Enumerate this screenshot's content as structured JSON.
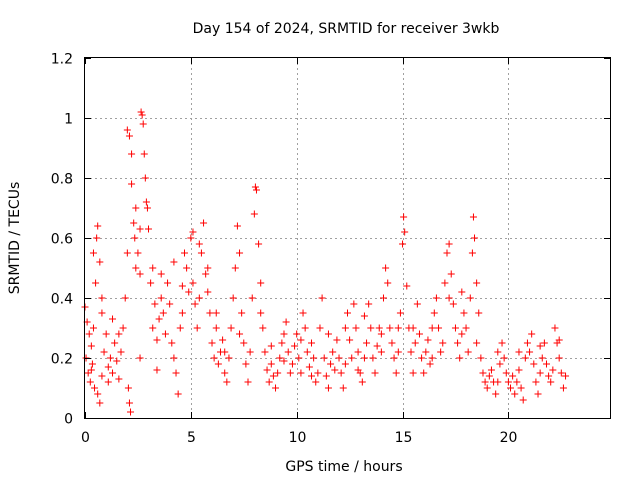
{
  "chart_data": {
    "type": "scatter",
    "title": "Day 154 of 2024, SRMTID for receiver 3wkb",
    "xlabel": "GPS time / hours",
    "ylabel": "SRMTID / TECUs",
    "xlim": [
      0,
      24.8
    ],
    "ylim": [
      0,
      1.2
    ],
    "xticks": [
      0,
      5,
      10,
      15,
      20
    ],
    "xtick_labels": [
      "0",
      "5",
      "10",
      "15",
      "20"
    ],
    "yticks": [
      0,
      0.2,
      0.4,
      0.6,
      0.8,
      1.0,
      1.2
    ],
    "ytick_labels": [
      "0",
      "0.2",
      "0.4",
      "0.6",
      "0.8",
      "1",
      "1.2"
    ],
    "grid": true,
    "marker": "plus",
    "color": "#ff0000",
    "series": [
      {
        "name": "SRMTID",
        "points": [
          [
            0.0,
            0.37
          ],
          [
            0.1,
            0.32
          ],
          [
            0.2,
            0.28
          ],
          [
            0.3,
            0.24
          ],
          [
            0.4,
            0.3
          ],
          [
            0.5,
            0.45
          ],
          [
            0.55,
            0.6
          ],
          [
            0.6,
            0.64
          ],
          [
            0.7,
            0.52
          ],
          [
            0.8,
            0.35
          ],
          [
            0.05,
            0.2
          ],
          [
            0.15,
            0.15
          ],
          [
            0.25,
            0.12
          ],
          [
            0.35,
            0.18
          ],
          [
            0.45,
            0.1
          ],
          [
            0.6,
            0.08
          ],
          [
            0.7,
            0.05
          ],
          [
            0.8,
            0.14
          ],
          [
            0.9,
            0.22
          ],
          [
            1.0,
            0.28
          ],
          [
            1.1,
            0.17
          ],
          [
            1.2,
            0.2
          ],
          [
            1.3,
            0.15
          ],
          [
            1.4,
            0.25
          ],
          [
            1.5,
            0.19
          ],
          [
            1.6,
            0.13
          ],
          [
            1.7,
            0.22
          ],
          [
            1.8,
            0.3
          ],
          [
            1.9,
            0.4
          ],
          [
            2.0,
            0.55
          ],
          [
            2.05,
            0.1
          ],
          [
            2.1,
            0.05
          ],
          [
            2.15,
            0.02
          ],
          [
            2.0,
            0.96
          ],
          [
            2.1,
            0.94
          ],
          [
            2.2,
            0.88
          ],
          [
            2.2,
            0.78
          ],
          [
            2.3,
            0.65
          ],
          [
            2.35,
            0.6
          ],
          [
            2.4,
            0.5
          ],
          [
            2.5,
            0.55
          ],
          [
            2.6,
            0.48
          ],
          [
            2.65,
            1.02
          ],
          [
            2.7,
            1.01
          ],
          [
            2.75,
            0.98
          ],
          [
            2.8,
            0.88
          ],
          [
            2.85,
            0.8
          ],
          [
            2.9,
            0.72
          ],
          [
            2.95,
            0.7
          ],
          [
            3.0,
            0.63
          ],
          [
            3.1,
            0.45
          ],
          [
            3.2,
            0.3
          ],
          [
            3.3,
            0.38
          ],
          [
            3.4,
            0.26
          ],
          [
            3.5,
            0.33
          ],
          [
            3.6,
            0.4
          ],
          [
            3.7,
            0.35
          ],
          [
            3.8,
            0.28
          ],
          [
            3.9,
            0.45
          ],
          [
            4.0,
            0.38
          ],
          [
            4.1,
            0.25
          ],
          [
            4.2,
            0.2
          ],
          [
            4.3,
            0.15
          ],
          [
            4.4,
            0.08
          ],
          [
            4.5,
            0.3
          ],
          [
            4.6,
            0.35
          ],
          [
            4.7,
            0.55
          ],
          [
            4.8,
            0.5
          ],
          [
            4.9,
            0.42
          ],
          [
            5.0,
            0.6
          ],
          [
            5.1,
            0.45
          ],
          [
            5.2,
            0.38
          ],
          [
            5.3,
            0.3
          ],
          [
            5.4,
            0.4
          ],
          [
            5.5,
            0.55
          ],
          [
            5.6,
            0.65
          ],
          [
            5.7,
            0.48
          ],
          [
            5.8,
            0.5
          ],
          [
            5.9,
            0.35
          ],
          [
            6.0,
            0.25
          ],
          [
            6.1,
            0.2
          ],
          [
            6.2,
            0.3
          ],
          [
            6.3,
            0.18
          ],
          [
            6.4,
            0.22
          ],
          [
            6.5,
            0.26
          ],
          [
            6.6,
            0.15
          ],
          [
            6.7,
            0.12
          ],
          [
            6.8,
            0.2
          ],
          [
            6.9,
            0.3
          ],
          [
            7.0,
            0.4
          ],
          [
            7.1,
            0.5
          ],
          [
            7.2,
            0.64
          ],
          [
            7.3,
            0.55
          ],
          [
            7.4,
            0.35
          ],
          [
            7.5,
            0.25
          ],
          [
            7.6,
            0.18
          ],
          [
            7.7,
            0.12
          ],
          [
            7.8,
            0.22
          ],
          [
            7.9,
            0.4
          ],
          [
            8.0,
            0.68
          ],
          [
            8.05,
            0.77
          ],
          [
            8.1,
            0.76
          ],
          [
            8.2,
            0.58
          ],
          [
            8.3,
            0.45
          ],
          [
            8.4,
            0.3
          ],
          [
            8.5,
            0.22
          ],
          [
            8.6,
            0.16
          ],
          [
            8.7,
            0.12
          ],
          [
            8.8,
            0.18
          ],
          [
            8.9,
            0.14
          ],
          [
            9.0,
            0.1
          ],
          [
            9.1,
            0.15
          ],
          [
            9.2,
            0.2
          ],
          [
            9.3,
            0.25
          ],
          [
            9.4,
            0.19
          ],
          [
            9.5,
            0.32
          ],
          [
            9.6,
            0.22
          ],
          [
            9.7,
            0.15
          ],
          [
            9.8,
            0.18
          ],
          [
            9.9,
            0.24
          ],
          [
            10.0,
            0.28
          ],
          [
            10.1,
            0.2
          ],
          [
            10.2,
            0.15
          ],
          [
            10.3,
            0.35
          ],
          [
            10.4,
            0.3
          ],
          [
            10.5,
            0.22
          ],
          [
            10.6,
            0.17
          ],
          [
            10.7,
            0.25
          ],
          [
            10.8,
            0.2
          ],
          [
            10.9,
            0.12
          ],
          [
            11.0,
            0.15
          ],
          [
            11.1,
            0.3
          ],
          [
            11.2,
            0.4
          ],
          [
            11.3,
            0.2
          ],
          [
            11.4,
            0.14
          ],
          [
            11.5,
            0.1
          ],
          [
            11.6,
            0.18
          ],
          [
            11.7,
            0.22
          ],
          [
            11.8,
            0.16
          ],
          [
            11.9,
            0.26
          ],
          [
            12.0,
            0.2
          ],
          [
            12.1,
            0.15
          ],
          [
            12.2,
            0.1
          ],
          [
            12.3,
            0.18
          ],
          [
            12.4,
            0.35
          ],
          [
            12.5,
            0.26
          ],
          [
            12.6,
            0.2
          ],
          [
            12.7,
            0.38
          ],
          [
            12.8,
            0.3
          ],
          [
            12.9,
            0.22
          ],
          [
            13.0,
            0.15
          ],
          [
            13.1,
            0.12
          ],
          [
            13.2,
            0.2
          ],
          [
            13.3,
            0.25
          ],
          [
            13.4,
            0.38
          ],
          [
            13.5,
            0.3
          ],
          [
            13.6,
            0.2
          ],
          [
            13.7,
            0.15
          ],
          [
            13.8,
            0.24
          ],
          [
            13.9,
            0.3
          ],
          [
            14.0,
            0.28
          ],
          [
            14.1,
            0.4
          ],
          [
            14.2,
            0.5
          ],
          [
            14.3,
            0.45
          ],
          [
            14.4,
            0.3
          ],
          [
            14.5,
            0.25
          ],
          [
            14.6,
            0.2
          ],
          [
            14.7,
            0.15
          ],
          [
            14.8,
            0.3
          ],
          [
            14.9,
            0.35
          ],
          [
            15.0,
            0.58
          ],
          [
            15.05,
            0.67
          ],
          [
            15.1,
            0.62
          ],
          [
            15.2,
            0.44
          ],
          [
            15.3,
            0.3
          ],
          [
            15.4,
            0.22
          ],
          [
            15.5,
            0.15
          ],
          [
            15.6,
            0.25
          ],
          [
            15.7,
            0.38
          ],
          [
            15.8,
            0.28
          ],
          [
            15.9,
            0.2
          ],
          [
            16.0,
            0.15
          ],
          [
            16.1,
            0.22
          ],
          [
            16.2,
            0.26
          ],
          [
            16.3,
            0.18
          ],
          [
            16.4,
            0.3
          ],
          [
            16.5,
            0.35
          ],
          [
            16.6,
            0.4
          ],
          [
            16.7,
            0.3
          ],
          [
            16.8,
            0.22
          ],
          [
            16.9,
            0.25
          ],
          [
            17.0,
            0.45
          ],
          [
            17.1,
            0.55
          ],
          [
            17.2,
            0.58
          ],
          [
            17.3,
            0.48
          ],
          [
            17.4,
            0.38
          ],
          [
            17.5,
            0.3
          ],
          [
            17.6,
            0.25
          ],
          [
            17.7,
            0.2
          ],
          [
            17.8,
            0.28
          ],
          [
            17.9,
            0.35
          ],
          [
            18.0,
            0.3
          ],
          [
            18.1,
            0.22
          ],
          [
            18.2,
            0.4
          ],
          [
            18.3,
            0.55
          ],
          [
            18.35,
            0.67
          ],
          [
            18.4,
            0.6
          ],
          [
            18.5,
            0.45
          ],
          [
            18.6,
            0.35
          ],
          [
            18.7,
            0.2
          ],
          [
            18.8,
            0.15
          ],
          [
            18.9,
            0.12
          ],
          [
            19.0,
            0.1
          ],
          [
            19.1,
            0.14
          ],
          [
            19.2,
            0.16
          ],
          [
            19.3,
            0.12
          ],
          [
            19.4,
            0.08
          ],
          [
            19.5,
            0.12
          ],
          [
            19.6,
            0.18
          ],
          [
            19.7,
            0.25
          ],
          [
            19.8,
            0.2
          ],
          [
            19.9,
            0.15
          ],
          [
            20.0,
            0.12
          ],
          [
            20.1,
            0.1
          ],
          [
            20.2,
            0.14
          ],
          [
            20.3,
            0.08
          ],
          [
            20.4,
            0.12
          ],
          [
            20.5,
            0.16
          ],
          [
            20.6,
            0.1
          ],
          [
            20.7,
            0.06
          ],
          [
            20.8,
            0.2
          ],
          [
            20.9,
            0.25
          ],
          [
            21.0,
            0.22
          ],
          [
            21.1,
            0.28
          ],
          [
            21.2,
            0.18
          ],
          [
            21.3,
            0.12
          ],
          [
            21.4,
            0.08
          ],
          [
            21.5,
            0.15
          ],
          [
            21.6,
            0.2
          ],
          [
            21.7,
            0.25
          ],
          [
            21.8,
            0.18
          ],
          [
            21.9,
            0.14
          ],
          [
            22.0,
            0.12
          ],
          [
            22.1,
            0.16
          ],
          [
            22.2,
            0.3
          ],
          [
            22.3,
            0.25
          ],
          [
            22.4,
            0.2
          ],
          [
            22.5,
            0.15
          ],
          [
            22.6,
            0.1
          ],
          [
            22.7,
            0.14
          ],
          [
            0.4,
            0.55
          ],
          [
            0.8,
            0.4
          ],
          [
            1.3,
            0.33
          ],
          [
            1.6,
            0.28
          ],
          [
            2.4,
            0.7
          ],
          [
            2.6,
            0.63
          ],
          [
            3.2,
            0.5
          ],
          [
            3.6,
            0.48
          ],
          [
            4.2,
            0.52
          ],
          [
            4.6,
            0.44
          ],
          [
            5.1,
            0.62
          ],
          [
            5.4,
            0.58
          ],
          [
            5.8,
            0.42
          ],
          [
            6.2,
            0.35
          ],
          [
            7.3,
            0.28
          ],
          [
            8.3,
            0.35
          ],
          [
            9.4,
            0.28
          ],
          [
            10.2,
            0.26
          ],
          [
            11.5,
            0.28
          ],
          [
            12.3,
            0.3
          ],
          [
            13.2,
            0.34
          ],
          [
            14.0,
            0.22
          ],
          [
            14.8,
            0.22
          ],
          [
            15.5,
            0.3
          ],
          [
            16.4,
            0.2
          ],
          [
            17.2,
            0.4
          ],
          [
            17.8,
            0.42
          ],
          [
            18.5,
            0.25
          ],
          [
            19.5,
            0.22
          ],
          [
            20.5,
            0.22
          ],
          [
            21.5,
            0.24
          ],
          [
            22.4,
            0.26
          ],
          [
            0.3,
            0.16
          ],
          [
            1.1,
            0.12
          ],
          [
            2.6,
            0.2
          ],
          [
            3.4,
            0.16
          ],
          [
            6.6,
            0.22
          ],
          [
            8.8,
            0.24
          ],
          [
            10.7,
            0.14
          ],
          [
            12.9,
            0.16
          ]
        ]
      }
    ]
  }
}
